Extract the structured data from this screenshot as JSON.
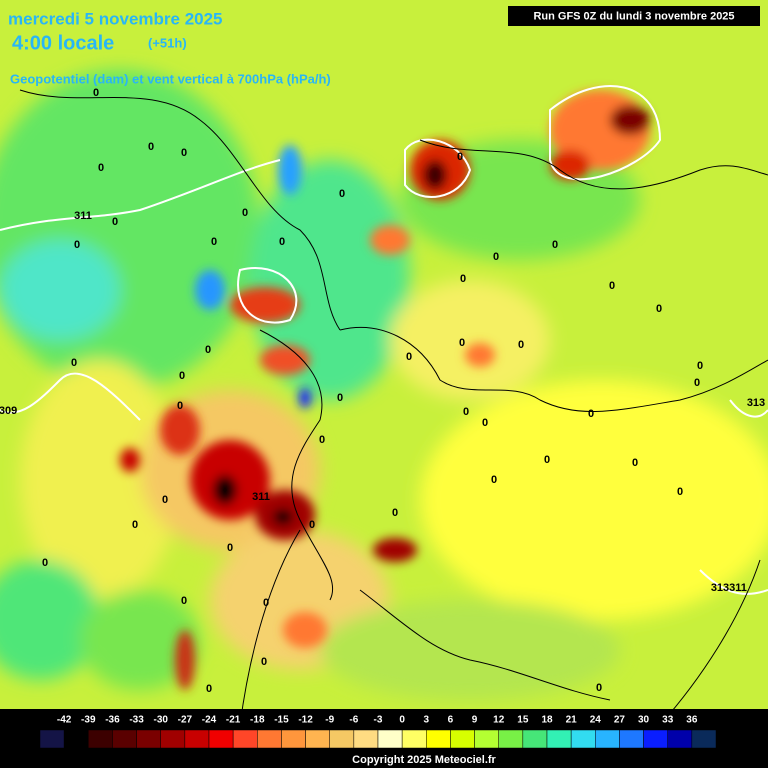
{
  "header": {
    "date": "mercredi 5 novembre 2025",
    "time": "4:00 locale",
    "lead": "(+51h)",
    "parameter": "Geopotentiel (dam) et vent vertical à 700hPa (hPa/h)",
    "run": "Run GFS 0Z du lundi 3 novembre 2025"
  },
  "colorbar": {
    "ticks": [
      -42,
      -39,
      -36,
      -33,
      -30,
      -27,
      -24,
      -21,
      -18,
      -15,
      -12,
      -9,
      -6,
      -3,
      0,
      3,
      6,
      9,
      12,
      15,
      18,
      21,
      24,
      27,
      30,
      33,
      36
    ],
    "colors": [
      "#141446",
      "#000000",
      "#3c0000",
      "#5a0000",
      "#7a0000",
      "#a00000",
      "#c80000",
      "#f00000",
      "#ff4628",
      "#ff7832",
      "#ff963c",
      "#ffb450",
      "#f5c864",
      "#ffdc82",
      "#ffffc8",
      "#ffff64",
      "#ffff00",
      "#d7ff00",
      "#b4ff32",
      "#78f046",
      "#46e678",
      "#32f0b4",
      "#32dcf0",
      "#28b4ff",
      "#1e78ff",
      "#0a1eff",
      "#0000aa",
      "#0a2a5a"
    ]
  },
  "map": {
    "contour_labels": [
      "0",
      "0",
      "0",
      "0",
      "0",
      "0",
      "0",
      "0",
      "0",
      "0",
      "0",
      "0",
      "0",
      "0",
      "0",
      "0",
      "0",
      "0",
      "0",
      "0",
      "0",
      "0",
      "0",
      "0",
      "0",
      "0",
      "0",
      "0",
      "0",
      "0",
      "0",
      "0",
      "0",
      "0",
      "0",
      "0",
      "0",
      "0",
      "0",
      "0",
      "0",
      "0",
      "0",
      "0",
      "0",
      "311",
      "311",
      "311",
      "309",
      "313",
      "313"
    ]
  },
  "footer": {
    "copyright": "Copyright 2025 Meteociel.fr"
  }
}
